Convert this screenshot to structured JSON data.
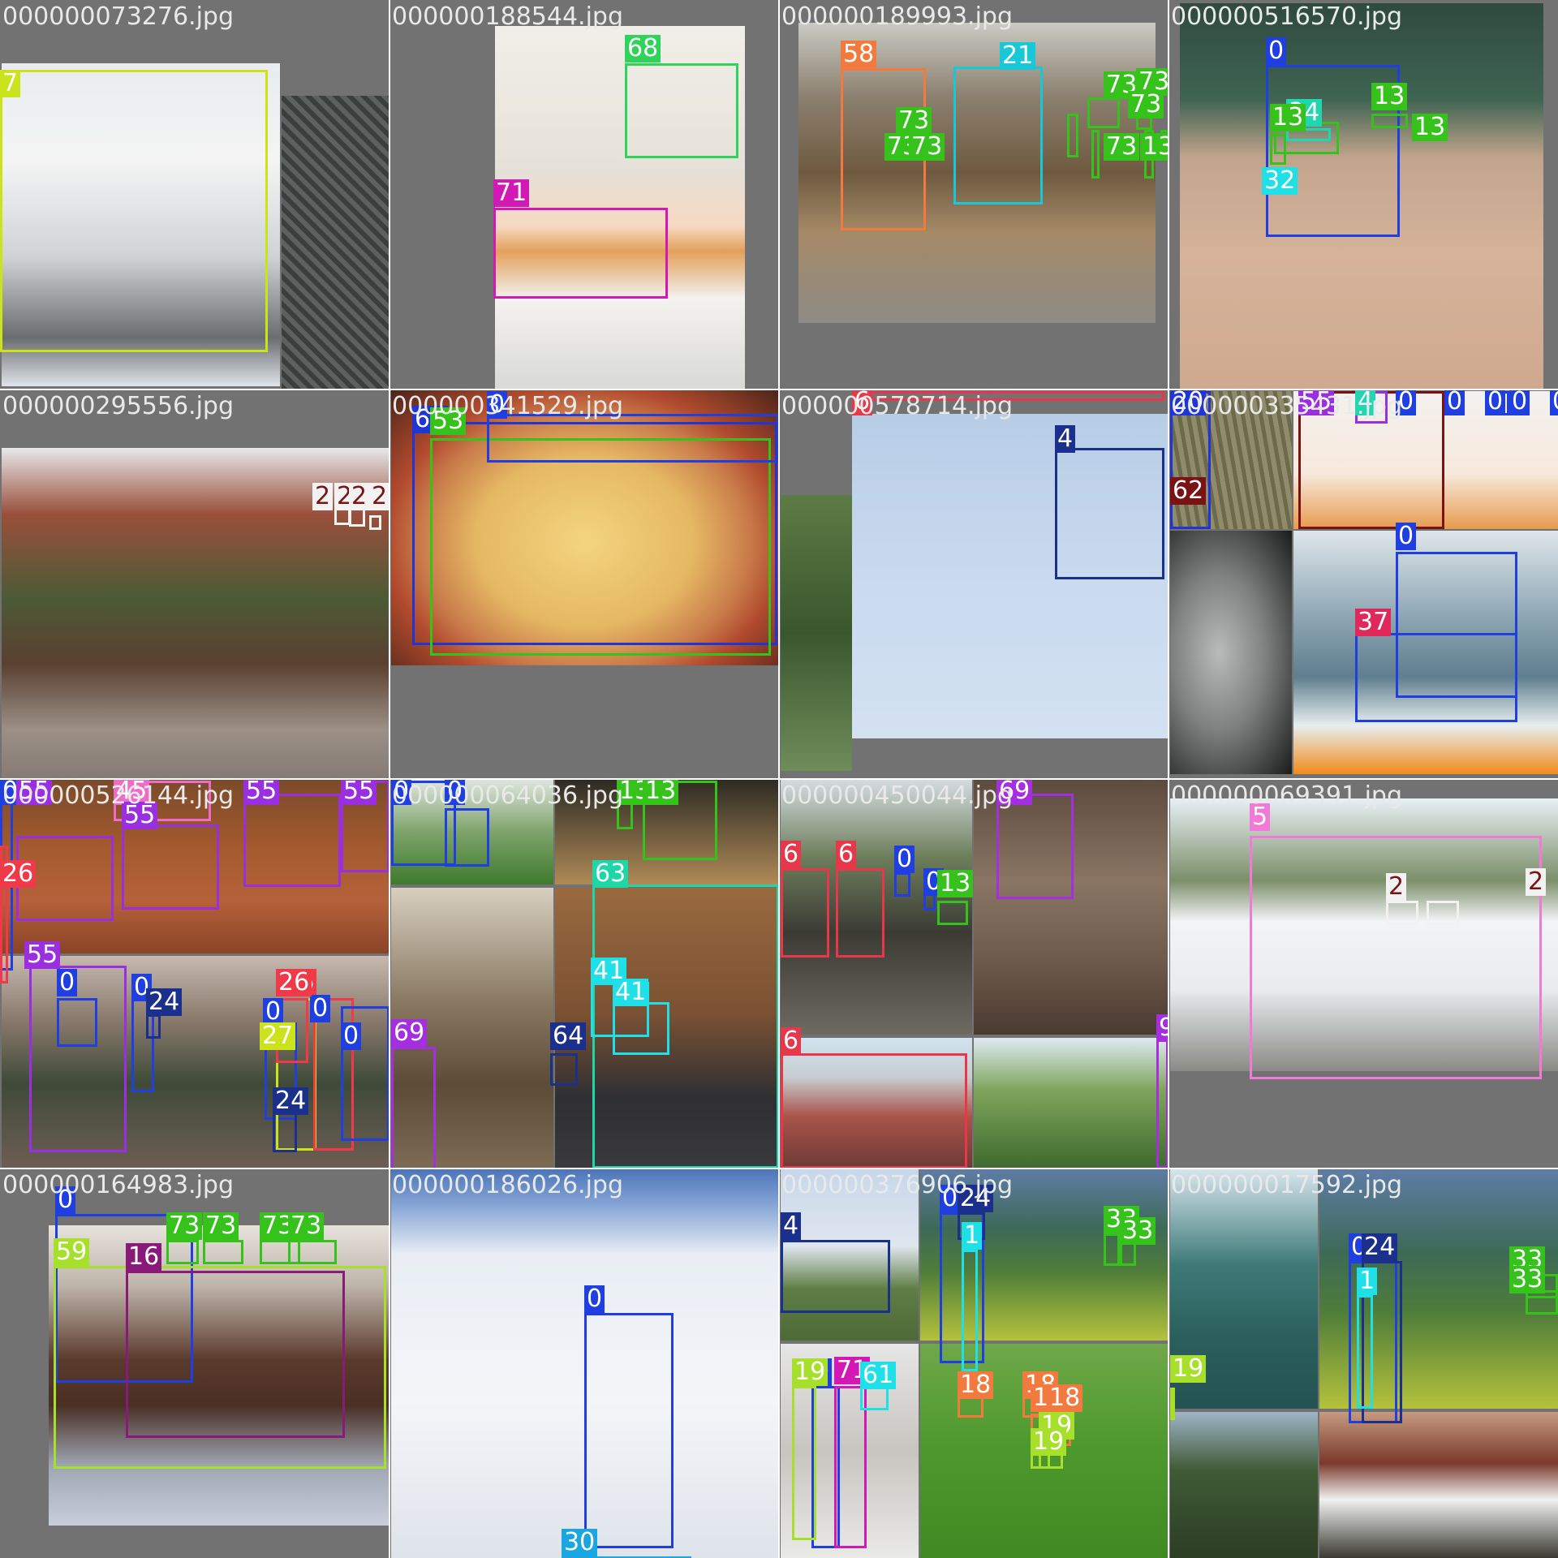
{
  "mosaic": {
    "tiles": [
      {
        "filename": "000000073276.jpg",
        "photos": [
          {
            "name": "truck-photo",
            "tone": "linear-gradient(180deg,#e9ecef 0%,#f4f4f4 30%,#cfd3d6 60%,#6a6d6f 85%,#dfe4ea 100%)"
          },
          {
            "name": "stone-wall-photo",
            "tone": "repeating-linear-gradient(45deg,#3b3e3d 0 6px,#5c605f 6px 12px)"
          }
        ],
        "labels": [
          {
            "class_id": "7",
            "color": "#cbe31b"
          }
        ]
      },
      {
        "filename": "000000188544.jpg",
        "photos": [
          {
            "name": "kitchen-photo",
            "tone": "linear-gradient(180deg,#f1efe9 0%,#e6e1d8 40%,#f6d9c2 55%,#e2a05a 62%,#f3f2ef 75%,#d9d9d6 100%)"
          }
        ],
        "labels": [
          {
            "class_id": "68",
            "color": "#2ed45a"
          },
          {
            "class_id": "71",
            "color": "#d219b6"
          }
        ]
      },
      {
        "filename": "000000189993.jpg",
        "photos": [
          {
            "name": "library-display-case-photo",
            "tone": "linear-gradient(180deg,#c9cbc4 0%,#8b7f6e 25%,#6f5a40 50%,#a58a67 70%,#8f8c86 100%)"
          }
        ],
        "labels": [
          {
            "class_id": "58",
            "color": "#f27a3e"
          },
          {
            "class_id": "21",
            "color": "#19c8d6"
          },
          {
            "class_id": "73",
            "color": "#35c21a"
          },
          {
            "class_id": "73",
            "color": "#35c21a"
          },
          {
            "class_id": "73",
            "color": "#35c21a"
          },
          {
            "class_id": "73",
            "color": "#35c21a"
          },
          {
            "class_id": "73",
            "color": "#35c21a"
          },
          {
            "class_id": "73",
            "color": "#35c21a"
          },
          {
            "class_id": "73",
            "color": "#35c21a"
          },
          {
            "class_id": "13",
            "color": "#35c21a"
          }
        ]
      },
      {
        "filename": "000000516570.jpg",
        "photos": [
          {
            "name": "baseball-batter-photo",
            "tone": "linear-gradient(180deg,#2f4a3f 0%,#3f6452 25%,#c2a48c 40%,#d6b39b 65%,#cfa98f 100%)"
          }
        ],
        "labels": [
          {
            "class_id": "0",
            "color": "#1f3fe0"
          },
          {
            "class_id": "34",
            "color": "#20d6b0"
          },
          {
            "class_id": "13",
            "color": "#35c21a"
          },
          {
            "class_id": "13",
            "color": "#35c21a"
          },
          {
            "class_id": "32",
            "color": "#1ee0e6"
          },
          {
            "class_id": "13",
            "color": "#35c21a"
          }
        ]
      },
      {
        "filename": "000000295556.jpg",
        "photos": [
          {
            "name": "street-sign-photo",
            "tone": "linear-gradient(180deg,#e6e8ea 0%,#9a4f3b 20%,#4c5b36 45%,#5a4030 65%,#9b8f86 85%,#857b73 100%)"
          }
        ],
        "labels": [
          {
            "class_id": "2",
            "color": "#f2f2f2"
          },
          {
            "class_id": "2",
            "color": "#f2f2f2"
          },
          {
            "class_id": "2",
            "color": "#f2f2f2"
          },
          {
            "class_id": "2",
            "color": "#f2f2f2"
          }
        ]
      },
      {
        "filename": "000000341529.jpg",
        "photos": [
          {
            "name": "pizza-photo",
            "tone": "radial-gradient(ellipse at 50% 55%,#f3d57f 0%,#e5b763 40%,#c97b4a 60%,#b14a2e 72%,#4a2418 100%)"
          }
        ],
        "labels": [
          {
            "class_id": "60",
            "color": "#2035d6"
          },
          {
            "class_id": "53",
            "color": "#35c21a"
          },
          {
            "class_id": "0",
            "color": "#1f3fe0"
          }
        ]
      },
      {
        "filename": "000000578714.jpg",
        "photos": [
          {
            "name": "airplane-sky-photo",
            "tone": "linear-gradient(180deg,#b7cde6 0%,#c9daef 50%,#d3e1f1 100%)"
          },
          {
            "name": "trees-photo",
            "tone": "linear-gradient(180deg,#5d7c45 0%,#39572c 50%,#6f8d5a 100%)"
          }
        ],
        "labels": [
          {
            "class_id": "6",
            "color": "#e8364a"
          },
          {
            "class_id": "4",
            "color": "#1b2f8c"
          }
        ]
      },
      {
        "filename": "000000335431.jpg",
        "photos": [
          {
            "name": "tree-bark-photo",
            "tone": "repeating-linear-gradient(80deg,#6d6a4c 0 5px,#8f8b6b 5px 11px)"
          },
          {
            "name": "cake-photo",
            "tone": "linear-gradient(180deg,#f4f1ef 0%,#f7e9dc 60%,#e79b4e 100%)"
          },
          {
            "name": "laptop-logo-photo",
            "tone": "radial-gradient(ellipse at 40% 50%,#b9bbbb 0%,#7f8181 45%,#1a1b1b 100%)"
          },
          {
            "name": "paddleboard-photo",
            "tone": "linear-gradient(180deg,#dfe6ea 0%,#8ea7b4 35%,#5f7e8e 60%,#e7eef0 80%,#f28b1b 100%)"
          }
        ],
        "labels": [
          {
            "class_id": "20",
            "color": "#2035d6"
          },
          {
            "class_id": "62",
            "color": "#7a1414"
          },
          {
            "class_id": "55",
            "color": "#9a2fe0"
          },
          {
            "class_id": "4",
            "color": "#22d6b0"
          },
          {
            "class_id": "0",
            "color": "#1f3fe0"
          },
          {
            "class_id": "0",
            "color": "#1f3fe0"
          },
          {
            "class_id": "0",
            "color": "#1f3fe0"
          },
          {
            "class_id": "0",
            "color": "#1f3fe0"
          },
          {
            "class_id": "0",
            "color": "#1f3fe0"
          },
          {
            "class_id": "0",
            "color": "#1f3fe0"
          },
          {
            "class_id": "37",
            "color": "#e0285a"
          }
        ]
      },
      {
        "filename": "000000526144.jpg",
        "photos": [
          {
            "name": "cookies-on-rack-photo",
            "tone": "linear-gradient(180deg,#7b4a2a 0%,#a45a2e 40%,#b5613a 70%,#8a4426 100%)"
          },
          {
            "name": "street-crowd-photo",
            "tone": "linear-gradient(180deg,#c7b9b0 0%,#8a7a6d 30%,#3f4a38 60%,#6e5e55 100%)"
          }
        ],
        "labels": [
          {
            "class_id": "0",
            "color": "#1f3fe0"
          },
          {
            "class_id": "55",
            "color": "#9a2fe0"
          },
          {
            "class_id": "45",
            "color": "#f06ac8"
          },
          {
            "class_id": "55",
            "color": "#9a2fe0"
          },
          {
            "class_id": "55",
            "color": "#9a2fe0"
          },
          {
            "class_id": "55",
            "color": "#9a2fe0"
          },
          {
            "class_id": "55",
            "color": "#9a2fe0"
          },
          {
            "class_id": "0",
            "color": "#1f3fe0"
          },
          {
            "class_id": "0",
            "color": "#1f3fe0"
          },
          {
            "class_id": "24",
            "color": "#1b2f8c"
          },
          {
            "class_id": "0",
            "color": "#1f3fe0"
          },
          {
            "class_id": "27",
            "color": "#cbe31b"
          },
          {
            "class_id": "26",
            "color": "#f03a4a"
          },
          {
            "class_id": "0",
            "color": "#1f3fe0"
          },
          {
            "class_id": "0",
            "color": "#1f3fe0"
          },
          {
            "class_id": "24",
            "color": "#1b2f8c"
          },
          {
            "class_id": "26",
            "color": "#f03a4a"
          },
          {
            "class_id": "0",
            "color": "#1f3fe0"
          },
          {
            "class_id": "26",
            "color": "#f03a4a"
          }
        ]
      },
      {
        "filename": "000000064036.jpg",
        "photos": [
          {
            "name": "soccer-legs-photo",
            "tone": "linear-gradient(180deg,#dfe7df 0%,#7ea36b 50%,#3e7a2e 100%)"
          },
          {
            "name": "living-room-floor-photo",
            "tone": "linear-gradient(180deg,#2c2a22 0%,#6d5a3e 50%,#b08a57 100%)"
          },
          {
            "name": "old-kitchen-photo",
            "tone": "linear-gradient(180deg,#d7cfbf 0%,#8a7a63 40%,#5c4b37 70%,#7c6b55 100%)"
          },
          {
            "name": "desk-laptop-photo",
            "tone": "linear-gradient(180deg,#9a6a3f 0%,#7a5133 45%,#2f2f33 75%,#3a3a3e 100%)"
          }
        ],
        "labels": [
          {
            "class_id": "0",
            "color": "#1f3fe0"
          },
          {
            "class_id": "0",
            "color": "#1f3fe0"
          },
          {
            "class_id": "13",
            "color": "#35c21a"
          },
          {
            "class_id": "13",
            "color": "#35c21a"
          },
          {
            "class_id": "63",
            "color": "#1ed6a8"
          },
          {
            "class_id": "41",
            "color": "#1ee0e6"
          },
          {
            "class_id": "41",
            "color": "#1ee0e6"
          },
          {
            "class_id": "64",
            "color": "#1b2f8c"
          },
          {
            "class_id": "69",
            "color": "#a52fe0"
          }
        ]
      },
      {
        "filename": "000000450044.jpg",
        "photos": [
          {
            "name": "train-station-photo",
            "tone": "linear-gradient(180deg,#d6dde3 0%,#6e7f5c 30%,#3b3b34 60%,#6d6a62 100%)"
          },
          {
            "name": "shed-stove-photo",
            "tone": "linear-gradient(180deg,#5c4a3d 0%,#8a7564 40%,#6e5b4c 70%,#4a3a30 100%)"
          },
          {
            "name": "train-roof-photo",
            "tone": "linear-gradient(180deg,#d1e3ef 0%,#c7cdd2 30%,#a9544a 60%,#6e3a35 100%)"
          },
          {
            "name": "forest-sky-photo",
            "tone": "linear-gradient(180deg,#dfeaf2 0%,#7fa45c 40%,#3e6a2e 100%)"
          }
        ],
        "labels": [
          {
            "class_id": "69",
            "color": "#a52fe0"
          },
          {
            "class_id": "6",
            "color": "#e8364a"
          },
          {
            "class_id": "6",
            "color": "#e8364a"
          },
          {
            "class_id": "0",
            "color": "#1f3fe0"
          },
          {
            "class_id": "0",
            "color": "#1f3fe0"
          },
          {
            "class_id": "13",
            "color": "#35c21a"
          },
          {
            "class_id": "6",
            "color": "#e8364a"
          },
          {
            "class_id": "9",
            "color": "#a52fe0"
          }
        ]
      },
      {
        "filename": "000000069391.jpg",
        "photos": [
          {
            "name": "city-bus-photo",
            "tone": "linear-gradient(180deg,#e8f0f4 0%,#7b8f6a 30%,#f2f4f6 45%,#e9ecef 70%,#8a8a86 100%)"
          }
        ],
        "labels": [
          {
            "class_id": "5",
            "color": "#f07ad6"
          },
          {
            "class_id": "2",
            "color": "#f2f2f2"
          },
          {
            "class_id": "2",
            "color": "#f2f2f2"
          }
        ]
      },
      {
        "filename": "000000164983.jpg",
        "photos": [
          {
            "name": "dog-on-bed-photo",
            "tone": "linear-gradient(180deg,#e7e2dc 0%,#bfb5ab 20%,#5a3a2c 45%,#4a2f25 60%,#9ea6b2 80%,#c8cfda 100%)"
          }
        ],
        "labels": [
          {
            "class_id": "0",
            "color": "#1f3fe0"
          },
          {
            "class_id": "16",
            "color": "#8a1a7a"
          },
          {
            "class_id": "73",
            "color": "#35c21a"
          },
          {
            "class_id": "73",
            "color": "#35c21a"
          },
          {
            "class_id": "73",
            "color": "#35c21a"
          },
          {
            "class_id": "73",
            "color": "#35c21a"
          },
          {
            "class_id": "59",
            "color": "#a6e02a"
          }
        ]
      },
      {
        "filename": "000000186026.jpg",
        "photos": [
          {
            "name": "child-skiing-photo",
            "tone": "linear-gradient(180deg,#4a74b8 0%,#8aa8d8 10%,#e9eef4 22%,#f3f5f8 60%,#dfe4ea 100%)"
          }
        ],
        "labels": [
          {
            "class_id": "0",
            "color": "#1f3fe0"
          },
          {
            "class_id": "30",
            "color": "#1aa6e0"
          }
        ]
      },
      {
        "filename": "000000376906.jpg",
        "photos": [
          {
            "name": "airliner-wing-photo",
            "tone": "linear-gradient(180deg,#c6d7ea 0%,#dfe6ee 45%,#5f7d45 70%,#4d6a37 100%)"
          },
          {
            "name": "mountain-hikers-photo",
            "tone": "linear-gradient(180deg,#5e7da6 0%,#3d6a57 35%,#4f7d3a 60%,#b4c23c 100%)"
          },
          {
            "name": "bathroom-child-photo",
            "tone": "linear-gradient(180deg,#e6e6e6 0%,#c7c5c0 50%,#e9e9e6 100%)"
          },
          {
            "name": "grass-field-photo",
            "tone": "linear-gradient(180deg,#6fa84a 0%,#4f9a2e 45%,#3f8a22 100%)"
          }
        ],
        "labels": [
          {
            "class_id": "4",
            "color": "#1b2f8c"
          },
          {
            "class_id": "0",
            "color": "#1f3fe0"
          },
          {
            "class_id": "24",
            "color": "#1b2f8c"
          },
          {
            "class_id": "1",
            "color": "#1ee0e6"
          },
          {
            "class_id": "33",
            "color": "#35c21a"
          },
          {
            "class_id": "33",
            "color": "#35c21a"
          },
          {
            "class_id": "0",
            "color": "#1f3fe0"
          },
          {
            "class_id": "71",
            "color": "#d219b6"
          },
          {
            "class_id": "61",
            "color": "#1ee0e6"
          },
          {
            "class_id": "18",
            "color": "#f27a3e"
          },
          {
            "class_id": "18",
            "color": "#f27a3e"
          },
          {
            "class_id": "18",
            "color": "#f27a3e"
          },
          {
            "class_id": "18",
            "color": "#f27a3e"
          },
          {
            "class_id": "19",
            "color": "#a6e02a"
          },
          {
            "class_id": "19",
            "color": "#a6e02a"
          },
          {
            "class_id": "19",
            "color": "#a6e02a"
          }
        ]
      },
      {
        "filename": "000000017592.jpg",
        "photos": [
          {
            "name": "ocean-wave-photo",
            "tone": "linear-gradient(180deg,#d8e6ef 0%,#3f7a78 40%,#2a5f5d 70%,#245352 100%)"
          },
          {
            "name": "mountain-hikers-photo",
            "tone": "linear-gradient(180deg,#5e7da6 0%,#3d6a57 35%,#4f7d3a 60%,#b4c23c 100%)"
          },
          {
            "name": "pine-trees-photo",
            "tone": "linear-gradient(180deg,#9fb5c8 0%,#3f5a35 40%,#2c3e24 100%)"
          },
          {
            "name": "hurst-grove-sign-photo",
            "tone": "linear-gradient(180deg,#c69a7f 0%,#7a3a2c 35%,#f1f1f1 60%,#3a3a32 100%)"
          }
        ],
        "labels": [
          {
            "class_id": "0",
            "color": "#1f3fe0"
          },
          {
            "class_id": "24",
            "color": "#1b2f8c"
          },
          {
            "class_id": "1",
            "color": "#1ee0e6"
          },
          {
            "class_id": "33",
            "color": "#35c21a"
          },
          {
            "class_id": "33",
            "color": "#35c21a"
          },
          {
            "class_id": "19",
            "color": "#a6e02a"
          }
        ]
      }
    ]
  }
}
